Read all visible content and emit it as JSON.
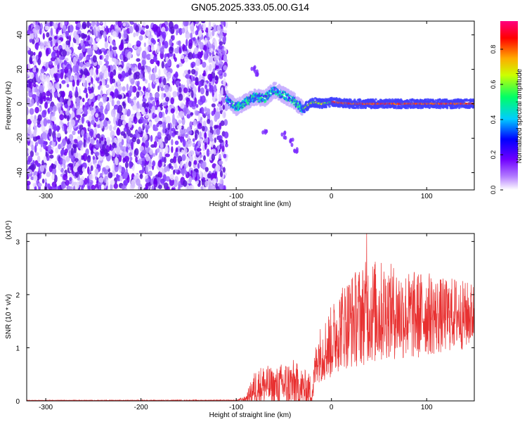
{
  "title": "GN05.2025.333.05.00.G14",
  "chart_data": [
    {
      "type": "heatmap",
      "xlabel": "Height of straight line (km)",
      "ylabel": "Frequency (Hz)",
      "xlim": [
        -320,
        150
      ],
      "ylim": [
        -50,
        48
      ],
      "xticks": [
        -300,
        -200,
        -100,
        0,
        100
      ],
      "yticks": [
        -40,
        -20,
        0,
        20,
        40
      ],
      "colorbar": {
        "label": "Normalized spectral amplitude",
        "range": [
          0,
          0.96
        ],
        "ticks": [
          0.0,
          0.2,
          0.4,
          0.6,
          0.8
        ],
        "colormap": [
          "#ffffff",
          "#7b00ff",
          "#0000ff",
          "#00ffff",
          "#00ff00",
          "#ffff00",
          "#ff0000",
          "#ff00ff"
        ]
      },
      "regions": [
        {
          "description_x_range": [
            -320,
            -110
          ],
          "f_range": [
            -50,
            48
          ],
          "amplitude": [
            0.05,
            0.15
          ]
        },
        {
          "description_x_range": [
            -110,
            -30
          ],
          "f_range": [
            -5,
            10
          ],
          "amplitude": [
            0.3,
            0.5
          ]
        },
        {
          "description_x_range": [
            -30,
            150
          ],
          "f_range": [
            -1,
            1
          ],
          "amplitude": [
            0.6,
            0.95
          ]
        }
      ],
      "ridge": {
        "x": [
          -110,
          -100,
          -90,
          -80,
          -70,
          -60,
          -50,
          -40,
          -30,
          -20,
          -10,
          0,
          20,
          40,
          60,
          80,
          100,
          120,
          150
        ],
        "f": [
          3,
          -2,
          1,
          4,
          3,
          8,
          5,
          2,
          -3,
          1,
          0,
          1,
          0,
          0,
          0,
          0,
          0,
          0,
          0
        ]
      }
    },
    {
      "type": "line",
      "xlabel": "Height of straight line (km)",
      "ylabel": "SNR (10 * v/v)",
      "yunit": "(x10⁴)",
      "xlim": [
        -320,
        150
      ],
      "ylim": [
        0,
        3.15
      ],
      "xticks": [
        -300,
        -200,
        -100,
        0,
        100
      ],
      "yticks": [
        0,
        1,
        2,
        3
      ],
      "color": "#e83030",
      "envelope": {
        "x": [
          -320,
          -100,
          -90,
          -80,
          -70,
          -60,
          -50,
          -40,
          -30,
          -20,
          -15,
          -10,
          0,
          10,
          20,
          30,
          40,
          50,
          60,
          70,
          80,
          90,
          100,
          110,
          120,
          130,
          140,
          150
        ],
        "mid": [
          0.01,
          0.01,
          0.04,
          0.25,
          0.3,
          0.25,
          0.3,
          0.28,
          0.22,
          0.18,
          0.85,
          0.9,
          1.1,
          1.4,
          1.5,
          1.6,
          1.7,
          1.65,
          1.7,
          1.65,
          1.6,
          1.6,
          1.65,
          1.6,
          1.6,
          1.65,
          1.6,
          1.65
        ],
        "spread": [
          0.005,
          0.01,
          0.05,
          0.35,
          0.4,
          0.35,
          0.45,
          0.5,
          0.4,
          0.3,
          0.5,
          0.55,
          0.7,
          0.8,
          0.9,
          0.95,
          1.0,
          1.0,
          0.9,
          0.9,
          0.85,
          0.85,
          0.8,
          0.75,
          0.7,
          0.7,
          0.65,
          0.6
        ]
      },
      "peak": {
        "x": 37,
        "y": 3.15
      }
    }
  ]
}
